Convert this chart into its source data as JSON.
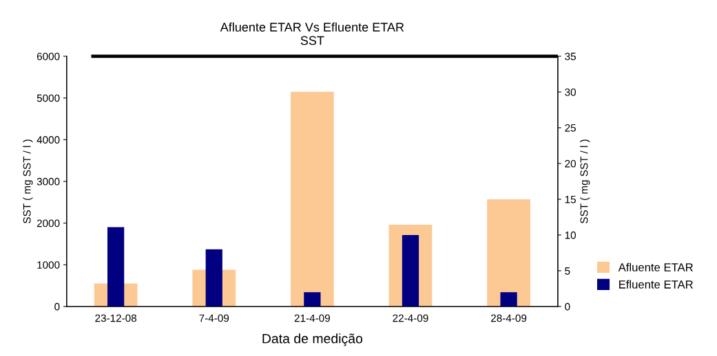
{
  "chart_data": {
    "type": "bar",
    "title": "Afluente ETAR Vs Efluente ETAR\nSST",
    "xlabel": "Data de medição",
    "ylabel": "SST ( mg SST / l )",
    "y2label": "SST ( mg SST / l )",
    "categories": [
      "23-12-08",
      "7-4-09",
      "21-4-09",
      "22-4-09",
      "28-4-09"
    ],
    "series": [
      {
        "name": "Afluente ETAR",
        "color": "#fcc994",
        "values": [
          550,
          880,
          5150,
          1960,
          2570
        ]
      },
      {
        "name": "Efluente ETAR",
        "color": "#000080",
        "values": [
          11.1,
          8.0,
          2.0,
          10.0,
          2.0
        ],
        "axis": "y2"
      }
    ],
    "ylim": [
      0,
      6000
    ],
    "yticks": [
      0,
      1000,
      2000,
      3000,
      4000,
      5000,
      6000
    ],
    "y2lim": [
      0,
      35
    ],
    "y2ticks": [
      0,
      5,
      10,
      15,
      20,
      25,
      30,
      35
    ],
    "ref_lines": [
      {
        "axis": "y2",
        "value": 35,
        "color": "#000000",
        "line_style": "solid"
      }
    ],
    "grid": false,
    "legend": "right"
  }
}
